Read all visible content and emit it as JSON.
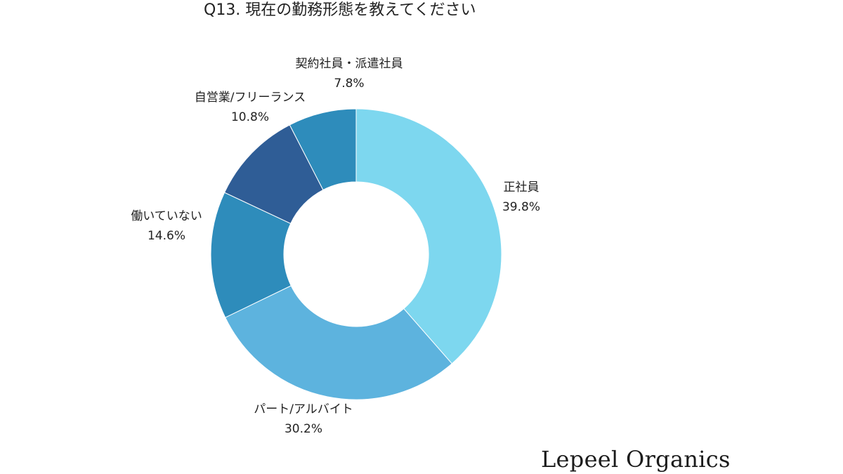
{
  "chart_data": {
    "type": "pie",
    "subtype": "donut",
    "title": "Q13. 現在の勤務形態を教えてください",
    "slices": [
      {
        "label": "正社員",
        "value": 39.8,
        "display": "39.8%",
        "color": "#7dd7ef"
      },
      {
        "label": "パート/アルバイト",
        "value": 30.2,
        "display": "30.2%",
        "color": "#5db3de"
      },
      {
        "label": "働いていない",
        "value": 14.6,
        "display": "14.6%",
        "color": "#2e8cbb"
      },
      {
        "label": "自営業/フリーランス",
        "value": 10.8,
        "display": "10.8%",
        "color": "#2f5d96"
      },
      {
        "label": "契約社員・派遣社員",
        "value": 7.8,
        "display": "7.8%",
        "color": "#2e8cbb"
      }
    ],
    "start_angle_deg": 0,
    "direction": "clockwise",
    "legend": "none"
  },
  "brand": {
    "text": "Lepeel Organics"
  }
}
